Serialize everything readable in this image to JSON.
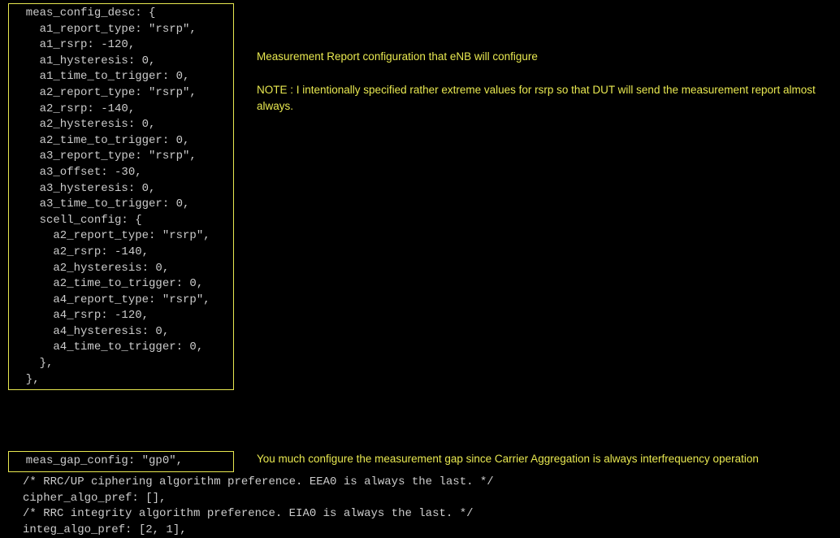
{
  "colors": {
    "background": "#000000",
    "border": "#e8e850",
    "code_text": "#cccccc",
    "annotation_text": "#e8e850"
  },
  "typography": {
    "code_font": "Consolas, 'Courier New', monospace",
    "annotation_font": "Verdana, Arial, sans-serif",
    "code_fontsize": 14,
    "annotation_fontsize": 13.5,
    "line_height": 1.4
  },
  "code_box_1": "  meas_config_desc: {\n    a1_report_type: \"rsrp\",\n    a1_rsrp: -120,\n    a1_hysteresis: 0,\n    a1_time_to_trigger: 0,\n    a2_report_type: \"rsrp\",\n    a2_rsrp: -140,\n    a2_hysteresis: 0,\n    a2_time_to_trigger: 0,\n    a3_report_type: \"rsrp\",\n    a3_offset: -30,\n    a3_hysteresis: 0,\n    a3_time_to_trigger: 0,\n    scell_config: {\n      a2_report_type: \"rsrp\",\n      a2_rsrp: -140,\n      a2_hysteresis: 0,\n      a2_time_to_trigger: 0,\n      a4_report_type: \"rsrp\",\n      a4_rsrp: -120,\n      a4_hysteresis: 0,\n      a4_time_to_trigger: 0,\n    },\n  },",
  "code_box_2": "  meas_gap_config: \"gp0\",",
  "plain_code": "/* RRC/UP ciphering algorithm preference. EEA0 is always the last. */\ncipher_algo_pref: [],\n/* RRC integrity algorithm preference. EIA0 is always the last. */\ninteg_algo_pref: [2, 1],",
  "annotation_1_line1": "Measurement Report configuration that eNB will configure",
  "annotation_1_line2": "NOTE : I intentionally specified rather extreme values for rsrp so that DUT will send the measurement report almost always.",
  "annotation_2": "You much configure the measurement gap since Carrier Aggregation is always interfrequency operation"
}
